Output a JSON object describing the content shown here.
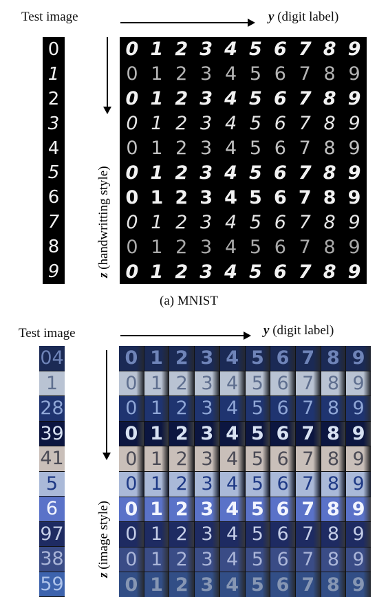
{
  "mnist": {
    "test_image_label": "Test image",
    "y_label_var": "y",
    "y_label_text": " (digit label)",
    "z_label_var": "z",
    "z_label_text": " (handwritting style)",
    "caption": "(a)  MNIST",
    "column_digits": [
      "0",
      "1",
      "2",
      "3",
      "4",
      "5",
      "6",
      "7",
      "8",
      "9"
    ],
    "grid_digits": [
      "0",
      "1",
      "2",
      "3",
      "4",
      "5",
      "6",
      "7",
      "8",
      "9"
    ]
  },
  "svhn": {
    "test_image_label": "Test image",
    "y_label_var": "y",
    "y_label_text": " (digit label)",
    "z_label_var": "z",
    "z_label_text": " (image style)",
    "row_colors": [
      {
        "bg": "#1b2a55",
        "fg": "#6f84b8"
      },
      {
        "bg": "#b9c3d3",
        "fg": "#5f6f8f"
      },
      {
        "bg": "#1f3470",
        "fg": "#8fa6d6"
      },
      {
        "bg": "#0c1640",
        "fg": "#d8e2f2"
      },
      {
        "bg": "#c9bfb9",
        "fg": "#4a4a55"
      },
      {
        "bg": "#aab9d8",
        "fg": "#1f3a86"
      },
      {
        "bg": "#5a72c8",
        "fg": "#f2f5ff"
      },
      {
        "bg": "#1e2b62",
        "fg": "#c4cde6"
      },
      {
        "bg": "#3a4c86",
        "fg": "#aab5d8"
      },
      {
        "bg": "#3d63ad",
        "fg": "#aec3ea"
      }
    ],
    "column_glyphs": [
      "04",
      "1",
      "28",
      "39",
      "41",
      "5",
      "6",
      "97",
      "38",
      "59"
    ]
  }
}
